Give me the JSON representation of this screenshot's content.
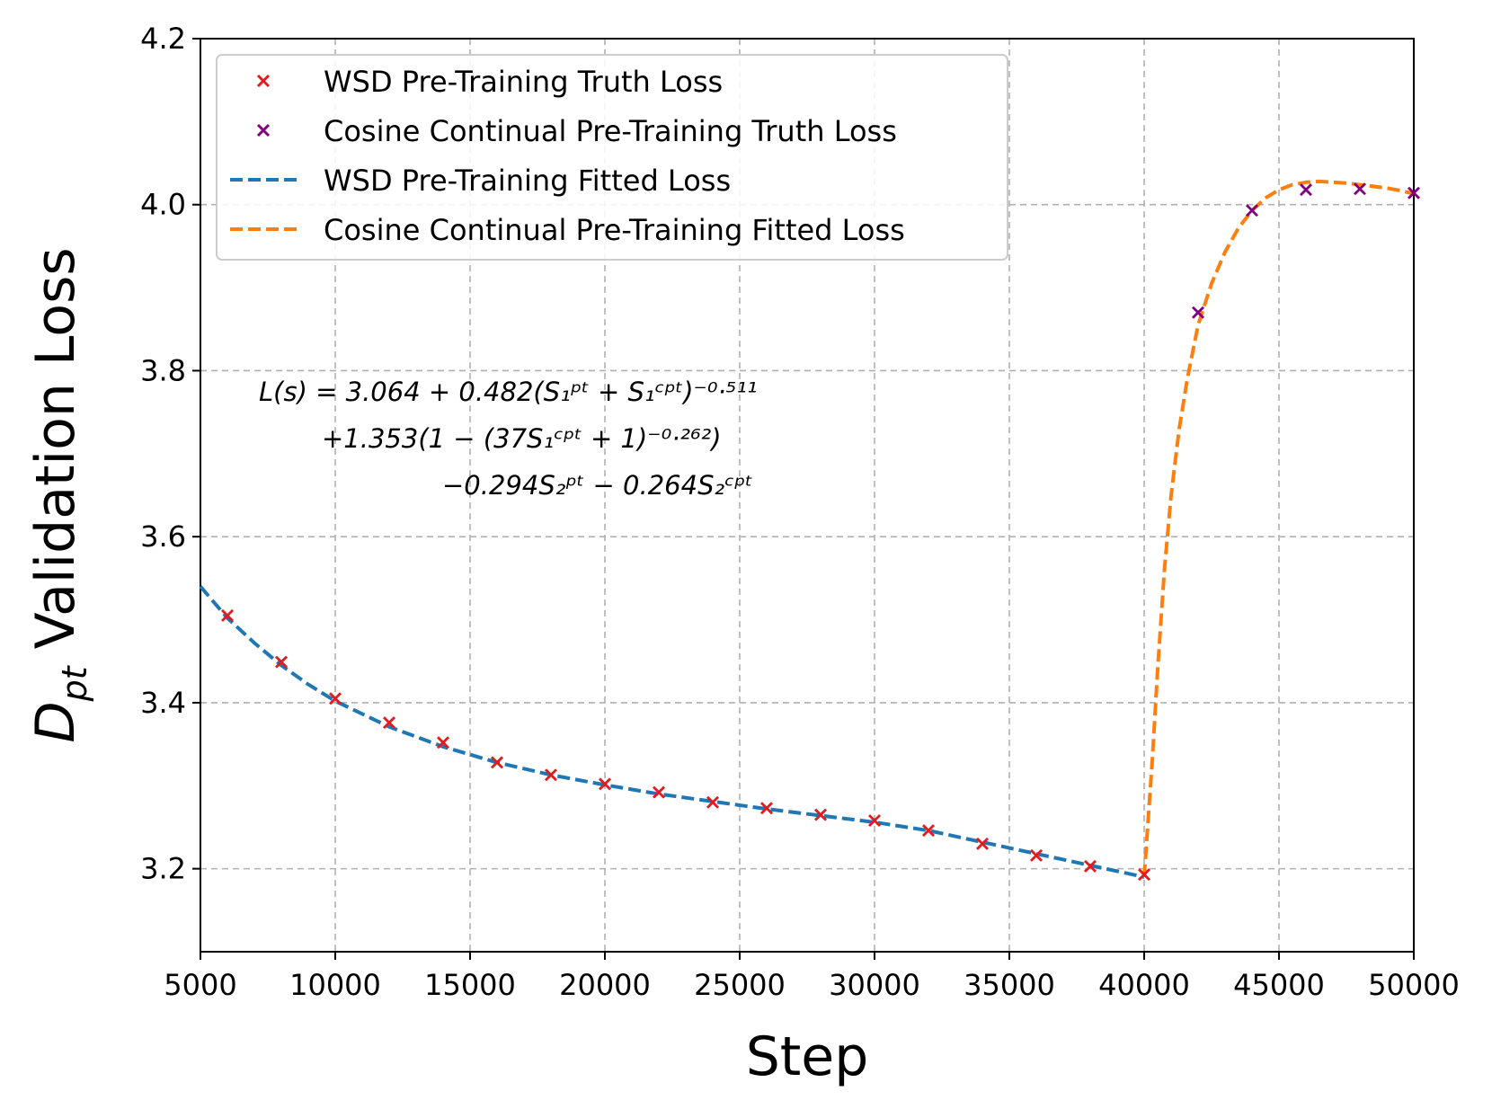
{
  "chart_data": {
    "type": "line",
    "title": "",
    "xlabel": "Step",
    "ylabel_main": "D",
    "ylabel_sub": "pt",
    "ylabel_rest": " Validation Loss",
    "xlim": [
      5000,
      50000
    ],
    "ylim": [
      3.1,
      4.2
    ],
    "grid": true,
    "legend_position": "upper-left",
    "xticks": [
      5000,
      10000,
      15000,
      20000,
      25000,
      30000,
      35000,
      40000,
      45000,
      50000
    ],
    "yticks": [
      3.2,
      3.4,
      3.6,
      3.8,
      4.0,
      4.2
    ],
    "ytick_labels": [
      "3.2",
      "3.4",
      "3.6",
      "3.8",
      "4.0",
      "4.2"
    ],
    "series": [
      {
        "name": "WSD Pre-Training Truth Loss",
        "kind": "scatter",
        "marker": "x",
        "color": "#e41a1c",
        "x": [
          6000,
          8000,
          10000,
          12000,
          14000,
          16000,
          18000,
          20000,
          22000,
          24000,
          26000,
          28000,
          30000,
          32000,
          34000,
          36000,
          38000,
          40000
        ],
        "y": [
          3.505,
          3.449,
          3.405,
          3.376,
          3.352,
          3.328,
          3.313,
          3.302,
          3.292,
          3.28,
          3.273,
          3.265,
          3.258,
          3.246,
          3.23,
          3.216,
          3.203,
          3.193
        ]
      },
      {
        "name": "Cosine Continual Pre-Training Truth Loss",
        "kind": "scatter",
        "marker": "x",
        "color": "#800080",
        "x": [
          42000,
          44000,
          46000,
          48000,
          50000
        ],
        "y": [
          3.87,
          3.993,
          4.018,
          4.019,
          4.014
        ]
      },
      {
        "name": "WSD Pre-Training Fitted Loss",
        "kind": "line",
        "dash": true,
        "color": "#1f77b4",
        "x": [
          5000,
          6000,
          7000,
          8000,
          9000,
          10000,
          12000,
          14000,
          16000,
          18000,
          20000,
          22000,
          24000,
          26000,
          28000,
          30000,
          32000,
          34000,
          36000,
          38000,
          40000
        ],
        "y": [
          3.54,
          3.502,
          3.472,
          3.445,
          3.422,
          3.402,
          3.371,
          3.347,
          3.328,
          3.313,
          3.301,
          3.29,
          3.281,
          3.272,
          3.264,
          3.256,
          3.246,
          3.232,
          3.218,
          3.204,
          3.19
        ]
      },
      {
        "name": "Cosine Continual Pre-Training Fitted Loss",
        "kind": "line",
        "dash": true,
        "color": "#ff7f0e",
        "x": [
          40000,
          40150,
          40300,
          40500,
          40750,
          41000,
          41300,
          41600,
          42000,
          42500,
          43000,
          43500,
          44000,
          44500,
          45000,
          45500,
          46000,
          46500,
          47000,
          47500,
          48000,
          48500,
          49000,
          49500,
          50000
        ],
        "y": [
          3.19,
          3.26,
          3.33,
          3.44,
          3.56,
          3.65,
          3.73,
          3.79,
          3.855,
          3.905,
          3.943,
          3.972,
          3.993,
          4.008,
          4.018,
          4.024,
          4.027,
          4.028,
          4.027,
          4.026,
          4.024,
          4.022,
          4.02,
          4.017,
          4.013
        ]
      }
    ],
    "annotation": {
      "line1": "L(s) = 3.064 + 0.482(S₁ᵖᵗ + S₁ᶜᵖᵗ)⁻⁰·⁵¹¹",
      "line2": "+1.353(1 − (37S₁ᶜᵖᵗ + 1)⁻⁰·²⁶²)",
      "line3": "−0.294S₂ᵖᵗ − 0.264S₂ᶜᵖᵗ"
    }
  }
}
